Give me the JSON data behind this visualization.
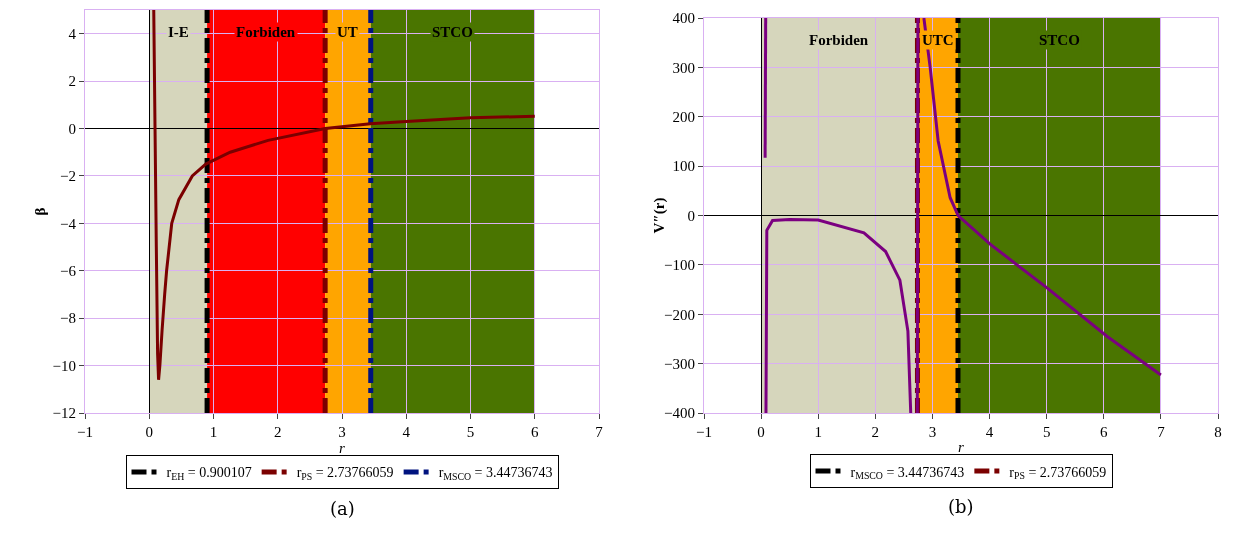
{
  "chart_data": [
    {
      "type": "line",
      "xlabel": "r",
      "ylabel": "β",
      "annotations": [
        "(a)"
      ],
      "xlim": [
        -1,
        7
      ],
      "ylim": [
        -12,
        5
      ],
      "xticks": [
        -1,
        0,
        1,
        2,
        3,
        4,
        5,
        6,
        7
      ],
      "yticks": [
        -12,
        -10,
        -8,
        -6,
        -4,
        -2,
        0,
        2,
        4
      ],
      "grid": true,
      "legend": "bottom",
      "series": [
        {
          "color": "#7b0000",
          "x": [
            0.07,
            0.09,
            0.11,
            0.13,
            0.145,
            0.165,
            0.2,
            0.24,
            0.27,
            0.35,
            0.46,
            0.67,
            0.88,
            1.26,
            1.85,
            2.74,
            3.44,
            4,
            5,
            6
          ],
          "values": [
            5,
            0,
            -5,
            -9.5,
            -10.6,
            -10,
            -8.5,
            -7,
            -6,
            -4,
            -3,
            -2,
            -1.5,
            -1,
            -0.5,
            0,
            0.2,
            0.3,
            0.45,
            0.52
          ]
        }
      ],
      "bands": [
        {
          "axis": "x",
          "from": 0,
          "to": 0.900107,
          "label": "I-E",
          "color": "#d6d6bc"
        },
        {
          "axis": "x",
          "from": 0.900107,
          "to": 2.73766059,
          "label": "Forbiden",
          "color": "#ff0000"
        },
        {
          "axis": "x",
          "from": 2.73766059,
          "to": 3.44736743,
          "label": "UT",
          "color": "#ffa500"
        },
        {
          "axis": "x",
          "from": 3.44736743,
          "to": 6,
          "label": "STCO",
          "color": "#4a7500"
        }
      ],
      "ref_lines": [
        {
          "axis": "x",
          "value": 0.900107,
          "label": "r$_{EH}$ = 0.900107",
          "color": "#000000",
          "line_style": "dashed"
        },
        {
          "axis": "x",
          "value": 2.73766059,
          "label": "r$_{PS}$ = 2.73766059",
          "color": "#7b0000",
          "line_style": "dashed"
        },
        {
          "axis": "x",
          "value": 3.44736743,
          "label": "r$_{MSCO}$ = 3.44736743",
          "color": "#00137f",
          "line_style": "dashed"
        }
      ]
    },
    {
      "type": "line",
      "xlabel": "r",
      "ylabel": "V″(r)",
      "annotations": [
        "(b)"
      ],
      "xlim": [
        -1,
        8
      ],
      "ylim": [
        -400,
        400
      ],
      "xticks": [
        -1,
        0,
        1,
        2,
        3,
        4,
        5,
        6,
        7,
        8
      ],
      "yticks": [
        -400,
        -300,
        -200,
        -100,
        0,
        100,
        200,
        300,
        400
      ],
      "grid": true,
      "legend": "bottom",
      "series": [
        {
          "color": "#7b0080",
          "x": [
            0.07,
            0.08,
            null,
            0.085,
            0.1,
            0.2,
            0.5,
            1,
            1.8,
            2.18,
            2.43,
            2.57,
            2.62,
            null,
            2.735,
            2.745,
            null,
            2.85,
            2.96,
            3.1,
            3.31,
            3.45,
            4.01,
            5,
            6.06,
            7
          ],
          "values": [
            117,
            400,
            null,
            -400,
            -30,
            -10,
            -8,
            -9,
            -35,
            -73,
            -131,
            -234,
            -400,
            null,
            -400,
            400,
            null,
            400,
            300,
            151,
            36,
            0,
            -58,
            -146,
            -245,
            -323
          ]
        }
      ],
      "bands": [
        {
          "axis": "x",
          "from": 0,
          "to": 2.73766059,
          "label": "Forbiden",
          "color": "#d6d6bc"
        },
        {
          "axis": "x",
          "from": 2.73766059,
          "to": 3.44736743,
          "label": "UTC",
          "color": "#ffa500"
        },
        {
          "axis": "x",
          "from": 3.44736743,
          "to": 7,
          "label": "STCO",
          "color": "#4a7500"
        }
      ],
      "ref_lines": [
        {
          "axis": "x",
          "value": 3.44736743,
          "label": "r$_{MSCO}$ = 3.44736743",
          "color": "#000000",
          "line_style": "dashed"
        },
        {
          "axis": "x",
          "value": 2.73766059,
          "label": "r$_{PS}$ = 2.73766059",
          "color": "#7b0000",
          "line_style": "dashed"
        }
      ]
    }
  ]
}
